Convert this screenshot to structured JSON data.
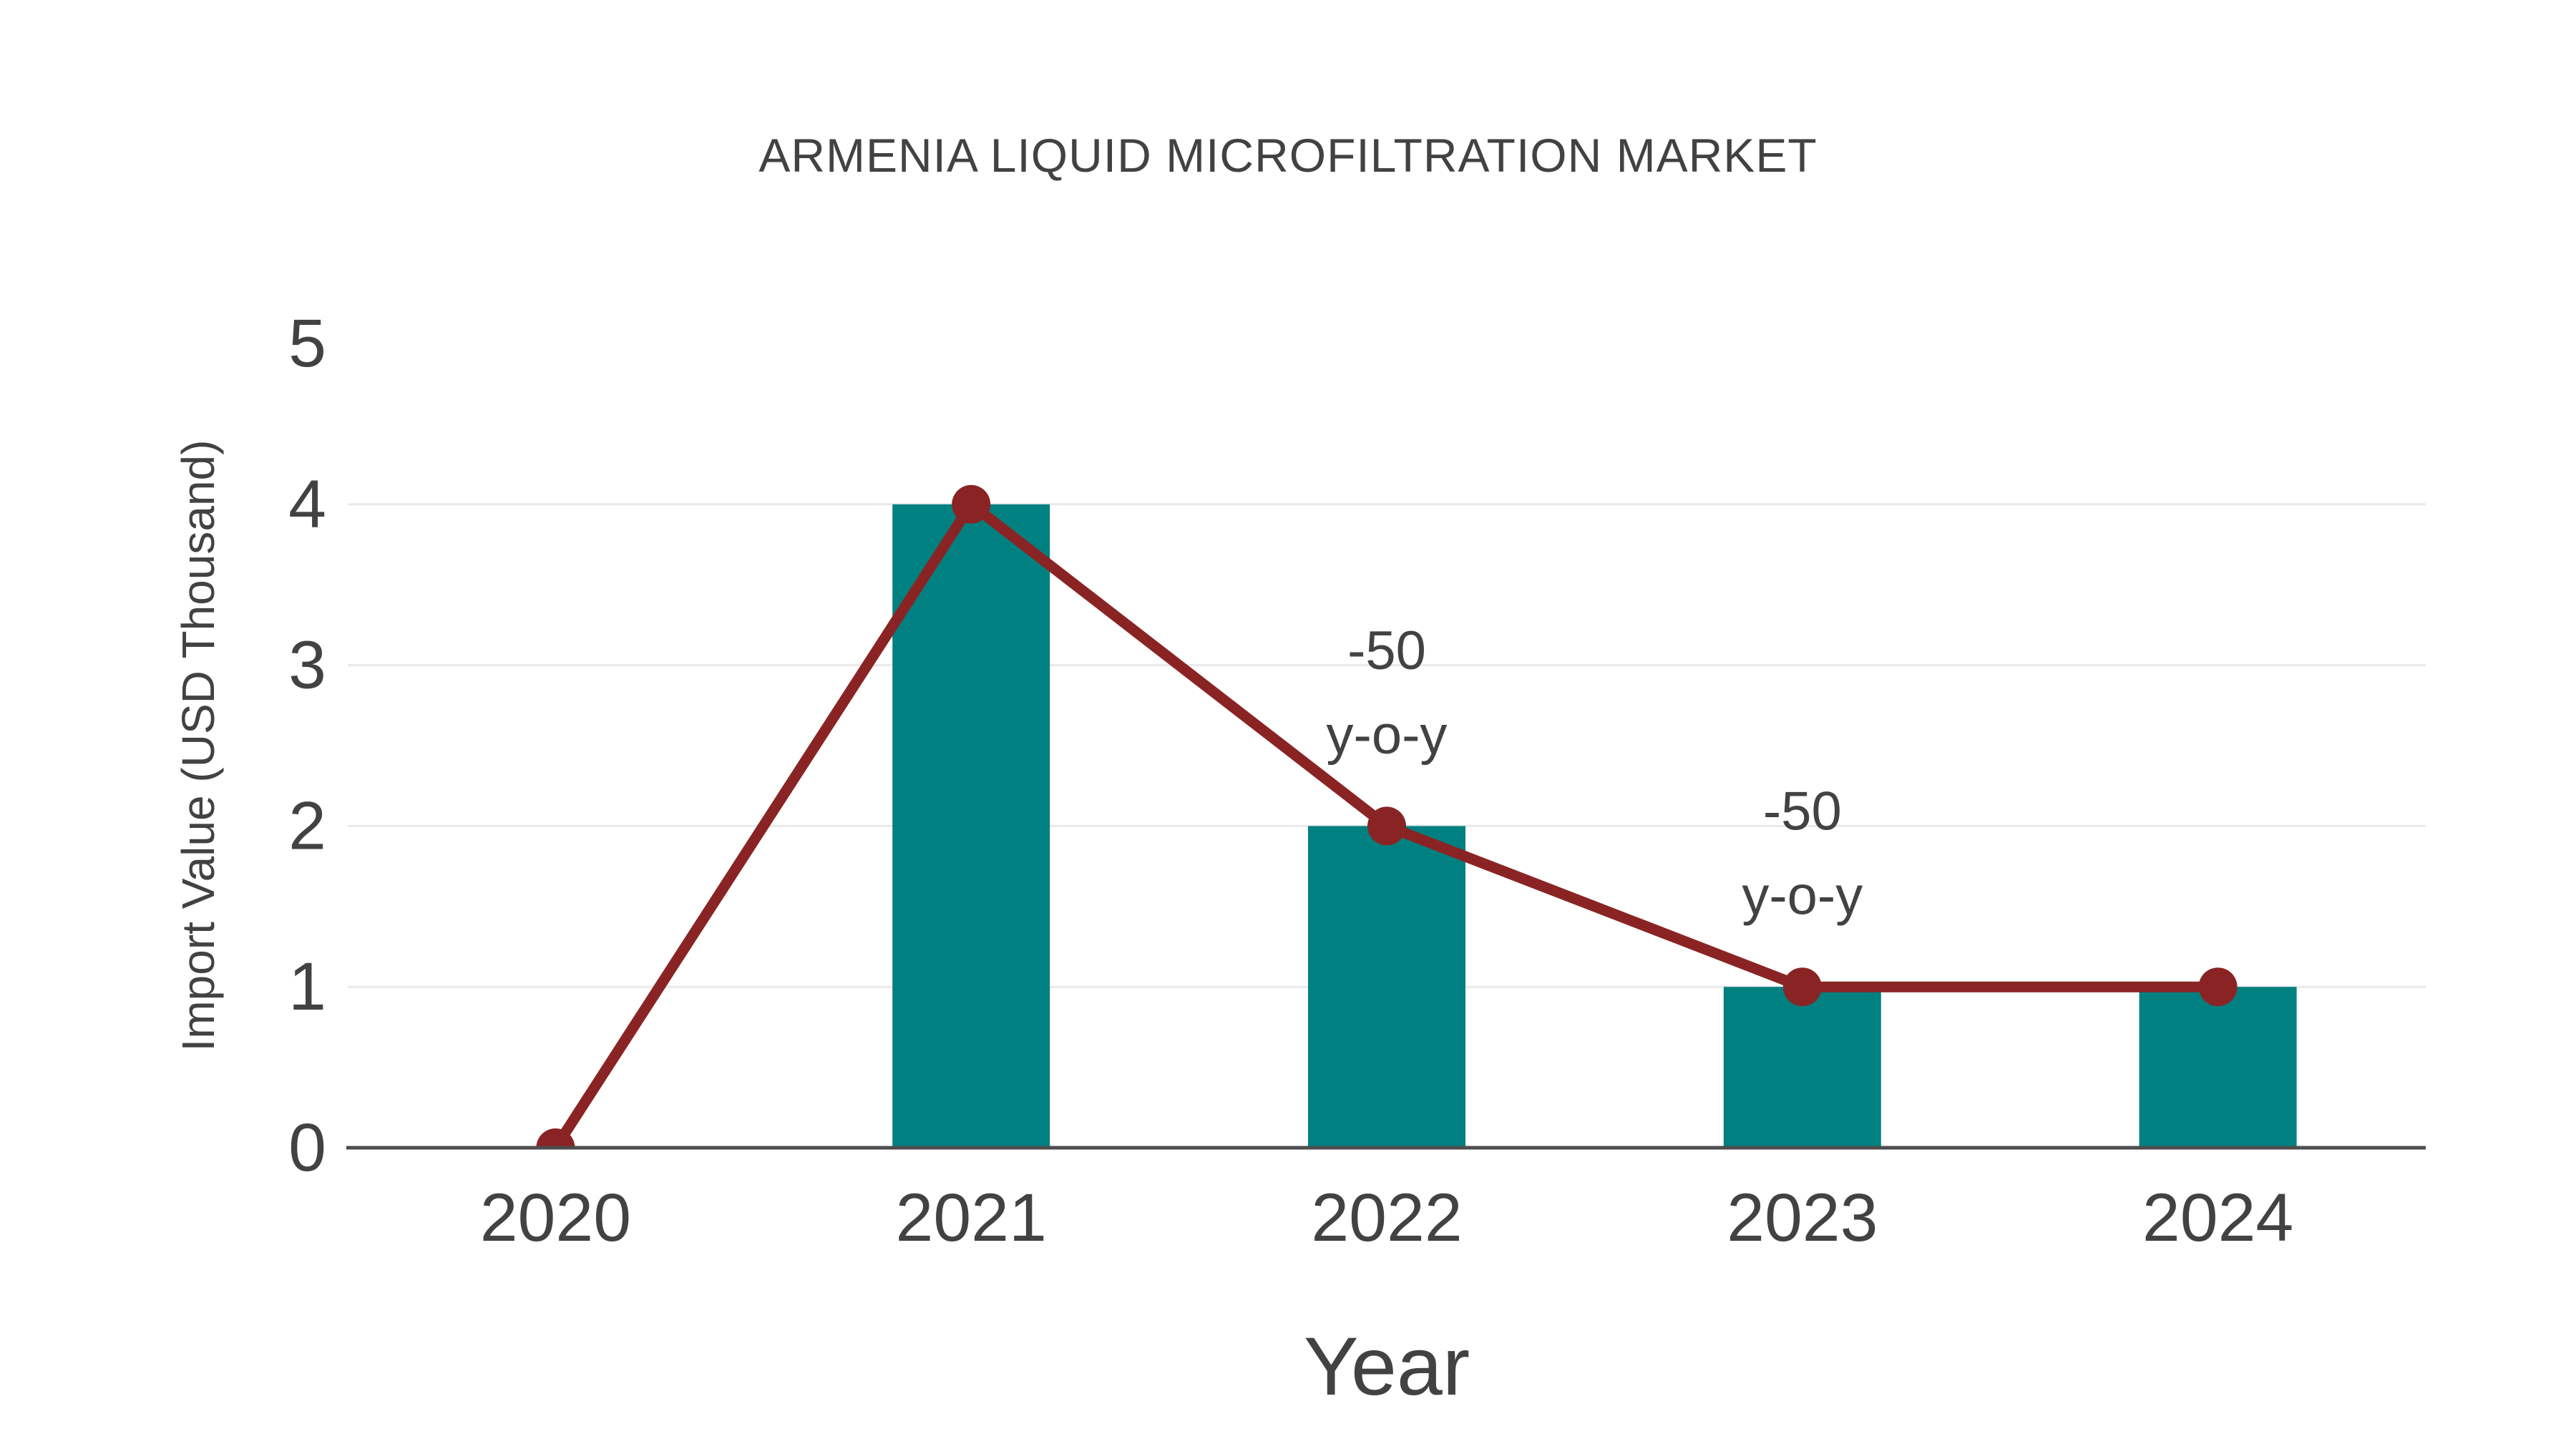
{
  "chart_data": {
    "type": "bar",
    "title": "ARMENIA LIQUID MICROFILTRATION MARKET",
    "xlabel": "Year",
    "ylabel": "Import Value (USD Thousand)",
    "categories": [
      "2020",
      "2021",
      "2022",
      "2023",
      "2024"
    ],
    "series": [
      {
        "name": "Import Value bars",
        "type": "bar",
        "values": [
          0,
          4,
          2,
          1,
          1
        ]
      },
      {
        "name": "Import Value trend line",
        "type": "line",
        "values": [
          0,
          4,
          2,
          1,
          1
        ]
      }
    ],
    "ylim": [
      0,
      5
    ],
    "yticks": [
      0,
      1,
      2,
      3,
      4,
      5
    ],
    "gridline_values": [
      1,
      2,
      3,
      4
    ],
    "legend": "none",
    "annotations": [
      {
        "category": "2022",
        "value": 2,
        "lines": [
          "-50",
          "y-o-y"
        ]
      },
      {
        "category": "2023",
        "value": 1,
        "lines": [
          "-50",
          "y-o-y"
        ]
      }
    ],
    "colors": {
      "bar": "#008080",
      "line": "#8A2424",
      "marker": "#8A2424",
      "text": "#424242",
      "grid": "#E9E9E9",
      "axis": "#4D4D4D",
      "background": "#FFFFFF"
    }
  }
}
